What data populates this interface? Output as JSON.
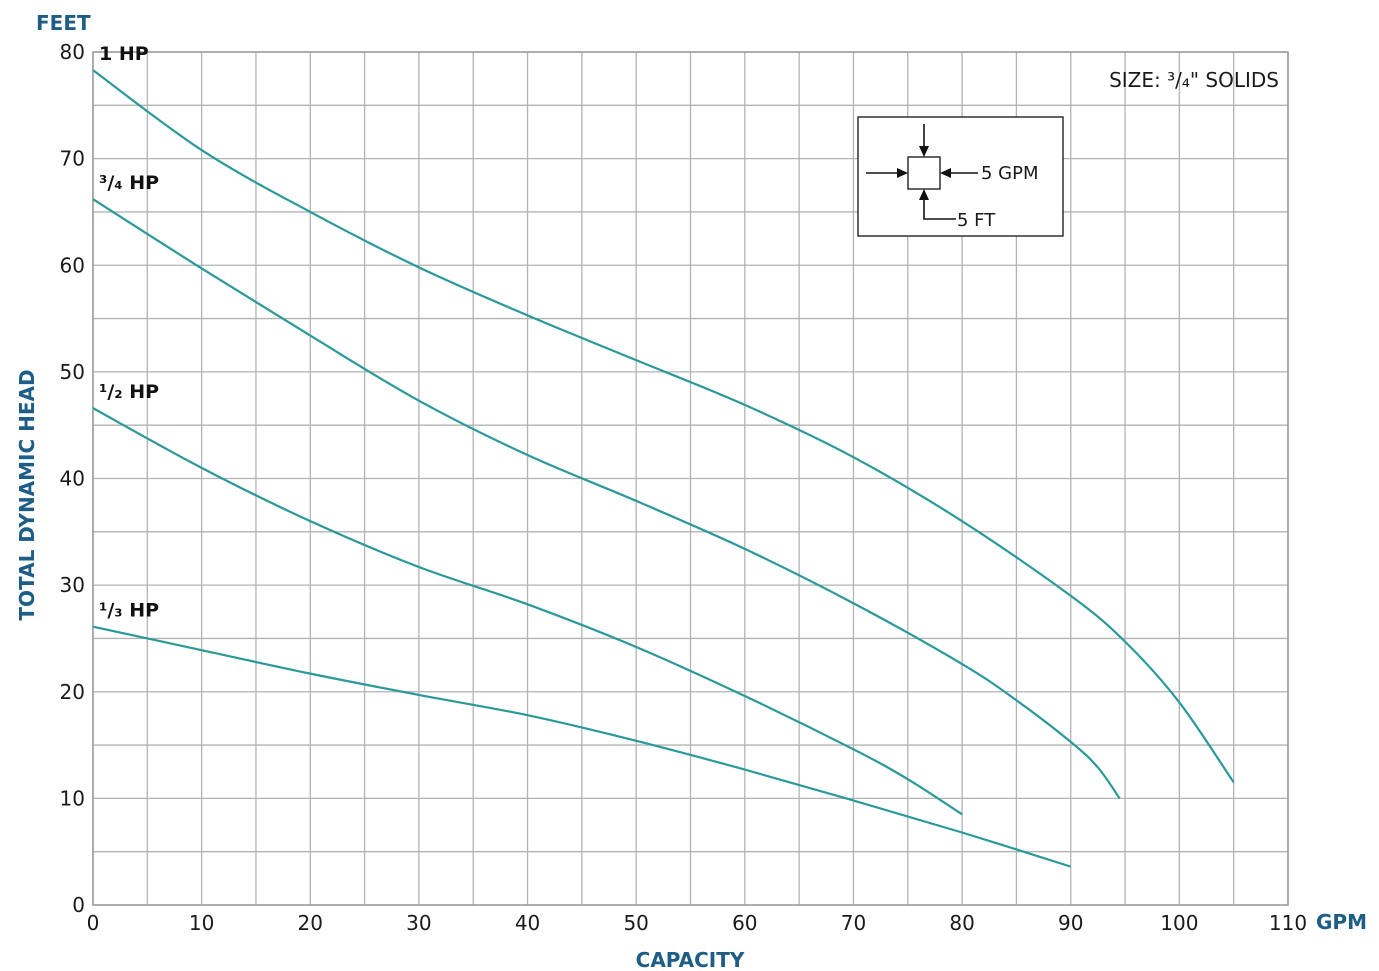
{
  "chart_data": {
    "type": "line",
    "xlabel": "CAPACITY",
    "x_unit": "GPM",
    "ylabel": "TOTAL DYNAMIC HEAD",
    "y_unit": "FEET",
    "xlim": [
      0,
      110
    ],
    "ylim": [
      0,
      80
    ],
    "x_ticks": [
      "0",
      "10",
      "20",
      "30",
      "40",
      "50",
      "60",
      "70",
      "80",
      "90",
      "100",
      "110"
    ],
    "y_ticks": [
      "0",
      "10",
      "20",
      "30",
      "40",
      "50",
      "60",
      "70",
      "80"
    ],
    "grid": true,
    "annotation": "SIZE: ³/₄\" SOLIDS",
    "scale_key": {
      "x_step": "5 GPM",
      "y_step": "5 FT"
    },
    "colors": {
      "curve": "#2a9a98",
      "axis_title": "#1d5d86"
    },
    "series": [
      {
        "name": "1 HP",
        "x": [
          0,
          10,
          20,
          30,
          40,
          50,
          60,
          70,
          80,
          90,
          95,
          100,
          105
        ],
        "y": [
          78.3,
          70.8,
          65.0,
          59.8,
          55.3,
          51.1,
          46.9,
          42.0,
          36.0,
          29.0,
          24.7,
          19.0,
          11.5
        ]
      },
      {
        "name": "³/₄ HP",
        "x": [
          0,
          10,
          20,
          30,
          40,
          50,
          60,
          70,
          80,
          85,
          90,
          92.5,
          94.5
        ],
        "y": [
          66.2,
          59.7,
          53.4,
          47.3,
          42.2,
          37.9,
          33.4,
          28.3,
          22.6,
          19.2,
          15.3,
          12.9,
          10.0
        ]
      },
      {
        "name": "¹/₂ HP",
        "x": [
          0,
          10,
          20,
          30,
          40,
          50,
          60,
          70,
          75,
          80
        ],
        "y": [
          46.6,
          41.0,
          36.0,
          31.7,
          28.2,
          24.2,
          19.6,
          14.6,
          11.8,
          8.5
        ]
      },
      {
        "name": "¹/₃ HP",
        "x": [
          0,
          10,
          20,
          30,
          40,
          50,
          60,
          70,
          80,
          90
        ],
        "y": [
          26.1,
          23.9,
          21.7,
          19.7,
          17.8,
          15.4,
          12.7,
          9.8,
          6.8,
          3.6
        ]
      }
    ]
  }
}
